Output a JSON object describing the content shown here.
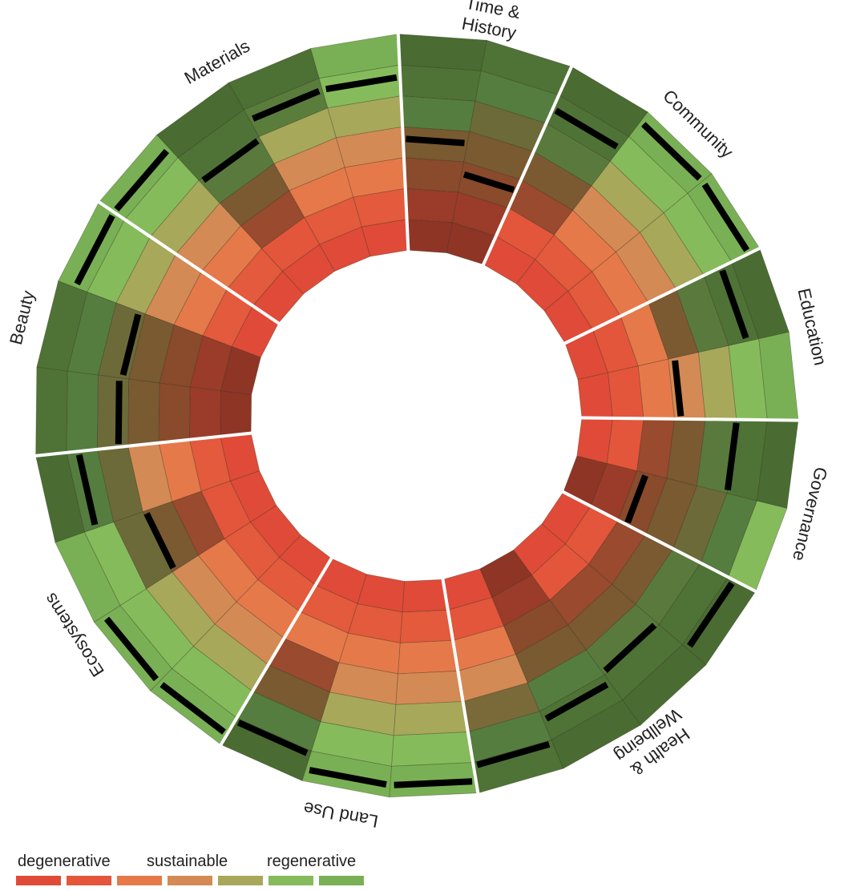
{
  "chart_data": {
    "type": "radial-segmented-ring",
    "title": "",
    "scale": {
      "levels": 7,
      "description": "7 concentric rings per spoke, inner ring = most degenerative, outer ring = most regenerative; black bar = assessed performance level"
    },
    "categories": [
      {
        "name": "Beauty",
        "spokes": [
          {
            "level": 4.3,
            "cells": [
              "#8f3526",
              "#9a3c29",
              "#8a4a2c",
              "#7a5a31",
              "#6d6a3a",
              "#557d3f",
              "#4f7336"
            ]
          },
          {
            "level": 4.2,
            "cells": [
              "#8f3526",
              "#9a3c29",
              "#8a4a2c",
              "#7a5a31",
              "#6d6a3a",
              "#557d3f",
              "#4f7336"
            ]
          },
          {
            "level": 6.4,
            "cells": [
              "#e04a38",
              "#e35a3c",
              "#e6794a",
              "#d48a55",
              "#a7a85a",
              "#86bb5c",
              "#7ab055"
            ]
          }
        ]
      },
      {
        "name": "Materials",
        "spokes": [
          {
            "level": 6.4,
            "cells": [
              "#e04a38",
              "#e35a3c",
              "#e6794a",
              "#d48a55",
              "#a7a85a",
              "#86bb5c",
              "#7ab055"
            ]
          },
          {
            "level": 4.9,
            "cells": [
              "#df4b38",
              "#e3563b",
              "#9a4a2e",
              "#7b5a32",
              "#5a7a3d",
              "#4f7336",
              "#4a6c32"
            ]
          },
          {
            "level": 5.6,
            "cells": [
              "#e04a38",
              "#e35a3c",
              "#e6794a",
              "#d48a55",
              "#a7a85a",
              "#5a7d3c",
              "#4d7034"
            ]
          },
          {
            "level": 5.6,
            "cells": [
              "#e04a38",
              "#e35a3c",
              "#e6794a",
              "#d48a55",
              "#a7a85a",
              "#86bb5c",
              "#7ab055"
            ]
          }
        ]
      },
      {
        "name": "Time & History",
        "spokes": [
          {
            "level": 3.6,
            "cells": [
              "#8f3526",
              "#9a3c29",
              "#8a4a2c",
              "#7a5a31",
              "#557d3f",
              "#4f7336",
              "#4a6c32"
            ]
          },
          {
            "level": 2.6,
            "cells": [
              "#8f3526",
              "#9a3c29",
              "#8a4a2c",
              "#7a5a31",
              "#6d6a3a",
              "#557d3f",
              "#4f7336"
            ]
          }
        ]
      },
      {
        "name": "Community",
        "spokes": [
          {
            "level": 5.5,
            "cells": [
              "#df4b38",
              "#e3563b",
              "#9a4a2e",
              "#7b5a32",
              "#5a7a3d",
              "#4f7336",
              "#4a6c32"
            ]
          },
          {
            "level": 6.6,
            "cells": [
              "#e04a38",
              "#e35a3c",
              "#e6794a",
              "#d48a55",
              "#a7a85a",
              "#86bb5c",
              "#7ab055"
            ]
          },
          {
            "level": 6.6,
            "cells": [
              "#e04a38",
              "#e35a3c",
              "#e6794a",
              "#d48a55",
              "#a7a85a",
              "#86bb5c",
              "#7ab055"
            ]
          }
        ]
      },
      {
        "name": "Education",
        "spokes": [
          {
            "level": 5.6,
            "cells": [
              "#df4b38",
              "#e3563b",
              "#e6794a",
              "#7b5a32",
              "#5a7a3d",
              "#4f7336",
              "#4a6c32"
            ]
          },
          {
            "level": 3.2,
            "cells": [
              "#df4b38",
              "#e3563b",
              "#e6794a",
              "#d48a55",
              "#a7a85a",
              "#86bb5c",
              "#7ab055"
            ]
          }
        ]
      },
      {
        "name": "Governance",
        "spokes": [
          {
            "level": 5.0,
            "cells": [
              "#df4b38",
              "#e3563b",
              "#9a4a2e",
              "#7b5a32",
              "#5a7a3d",
              "#4f7336",
              "#4a6c32"
            ]
          },
          {
            "level": 2.3,
            "cells": [
              "#8f3526",
              "#9a3c29",
              "#8a4a2c",
              "#7a5a31",
              "#6d6a3a",
              "#557d3f",
              "#86bb5c"
            ]
          }
        ]
      },
      {
        "name": "Health & Wellbeing",
        "spokes": [
          {
            "level": 6.2,
            "cells": [
              "#df4b38",
              "#e3563b",
              "#9a4a2e",
              "#7b5a32",
              "#5a7a3d",
              "#4f7336",
              "#4a6c32"
            ]
          },
          {
            "level": 4.9,
            "cells": [
              "#df4b38",
              "#e3563b",
              "#9a4a2e",
              "#7b5a32",
              "#5a7a3d",
              "#4f7336",
              "#4a6c32"
            ]
          },
          {
            "level": 5.3,
            "cells": [
              "#8f3526",
              "#9a3c29",
              "#8a4a2c",
              "#7a5a31",
              "#557d3f",
              "#4f7336",
              "#4a6c32"
            ]
          },
          {
            "level": 6.1,
            "cells": [
              "#df4b38",
              "#e3563b",
              "#e6794a",
              "#d48a55",
              "#7a6a3a",
              "#557d3f",
              "#4f7336"
            ]
          }
        ]
      },
      {
        "name": "Land Use",
        "spokes": [
          {
            "level": 6.6,
            "cells": [
              "#e04a38",
              "#e35a3c",
              "#e6794a",
              "#d48a55",
              "#a7a85a",
              "#86bb5c",
              "#7ab055"
            ]
          },
          {
            "level": 6.6,
            "cells": [
              "#e04a38",
              "#e35a3c",
              "#e6794a",
              "#d48a55",
              "#a7a85a",
              "#86bb5c",
              "#7ab055"
            ]
          },
          {
            "level": 6.1,
            "cells": [
              "#e04a38",
              "#e35a3c",
              "#e6794a",
              "#9a4a2e",
              "#7a5a31",
              "#557d3f",
              "#4a6c32"
            ]
          }
        ]
      },
      {
        "name": "Ecosystems",
        "spokes": [
          {
            "level": 6.6,
            "cells": [
              "#e04a38",
              "#e35a3c",
              "#e6794a",
              "#d48a55",
              "#a7a85a",
              "#86bb5c",
              "#7ab055"
            ]
          },
          {
            "level": 6.6,
            "cells": [
              "#e04a38",
              "#e35a3c",
              "#e6794a",
              "#d48a55",
              "#a7a85a",
              "#86bb5c",
              "#7ab055"
            ]
          },
          {
            "level": 3.9,
            "cells": [
              "#df4b38",
              "#e3563b",
              "#9a4a2e",
              "#7b5a32",
              "#6d6a3a",
              "#86bb5c",
              "#7ab055"
            ]
          },
          {
            "level": 5.6,
            "cells": [
              "#e04a38",
              "#e35a3c",
              "#e6794a",
              "#d48a55",
              "#6d6a3a",
              "#557d3f",
              "#4a6c32"
            ]
          }
        ]
      }
    ],
    "legend": {
      "labels": [
        "degenerative",
        "sustainable",
        "regenerative"
      ],
      "swatches": [
        "#df4b38",
        "#e3563b",
        "#e6794a",
        "#d48a55",
        "#a7a85a",
        "#86bb5c",
        "#7ab055"
      ]
    }
  }
}
